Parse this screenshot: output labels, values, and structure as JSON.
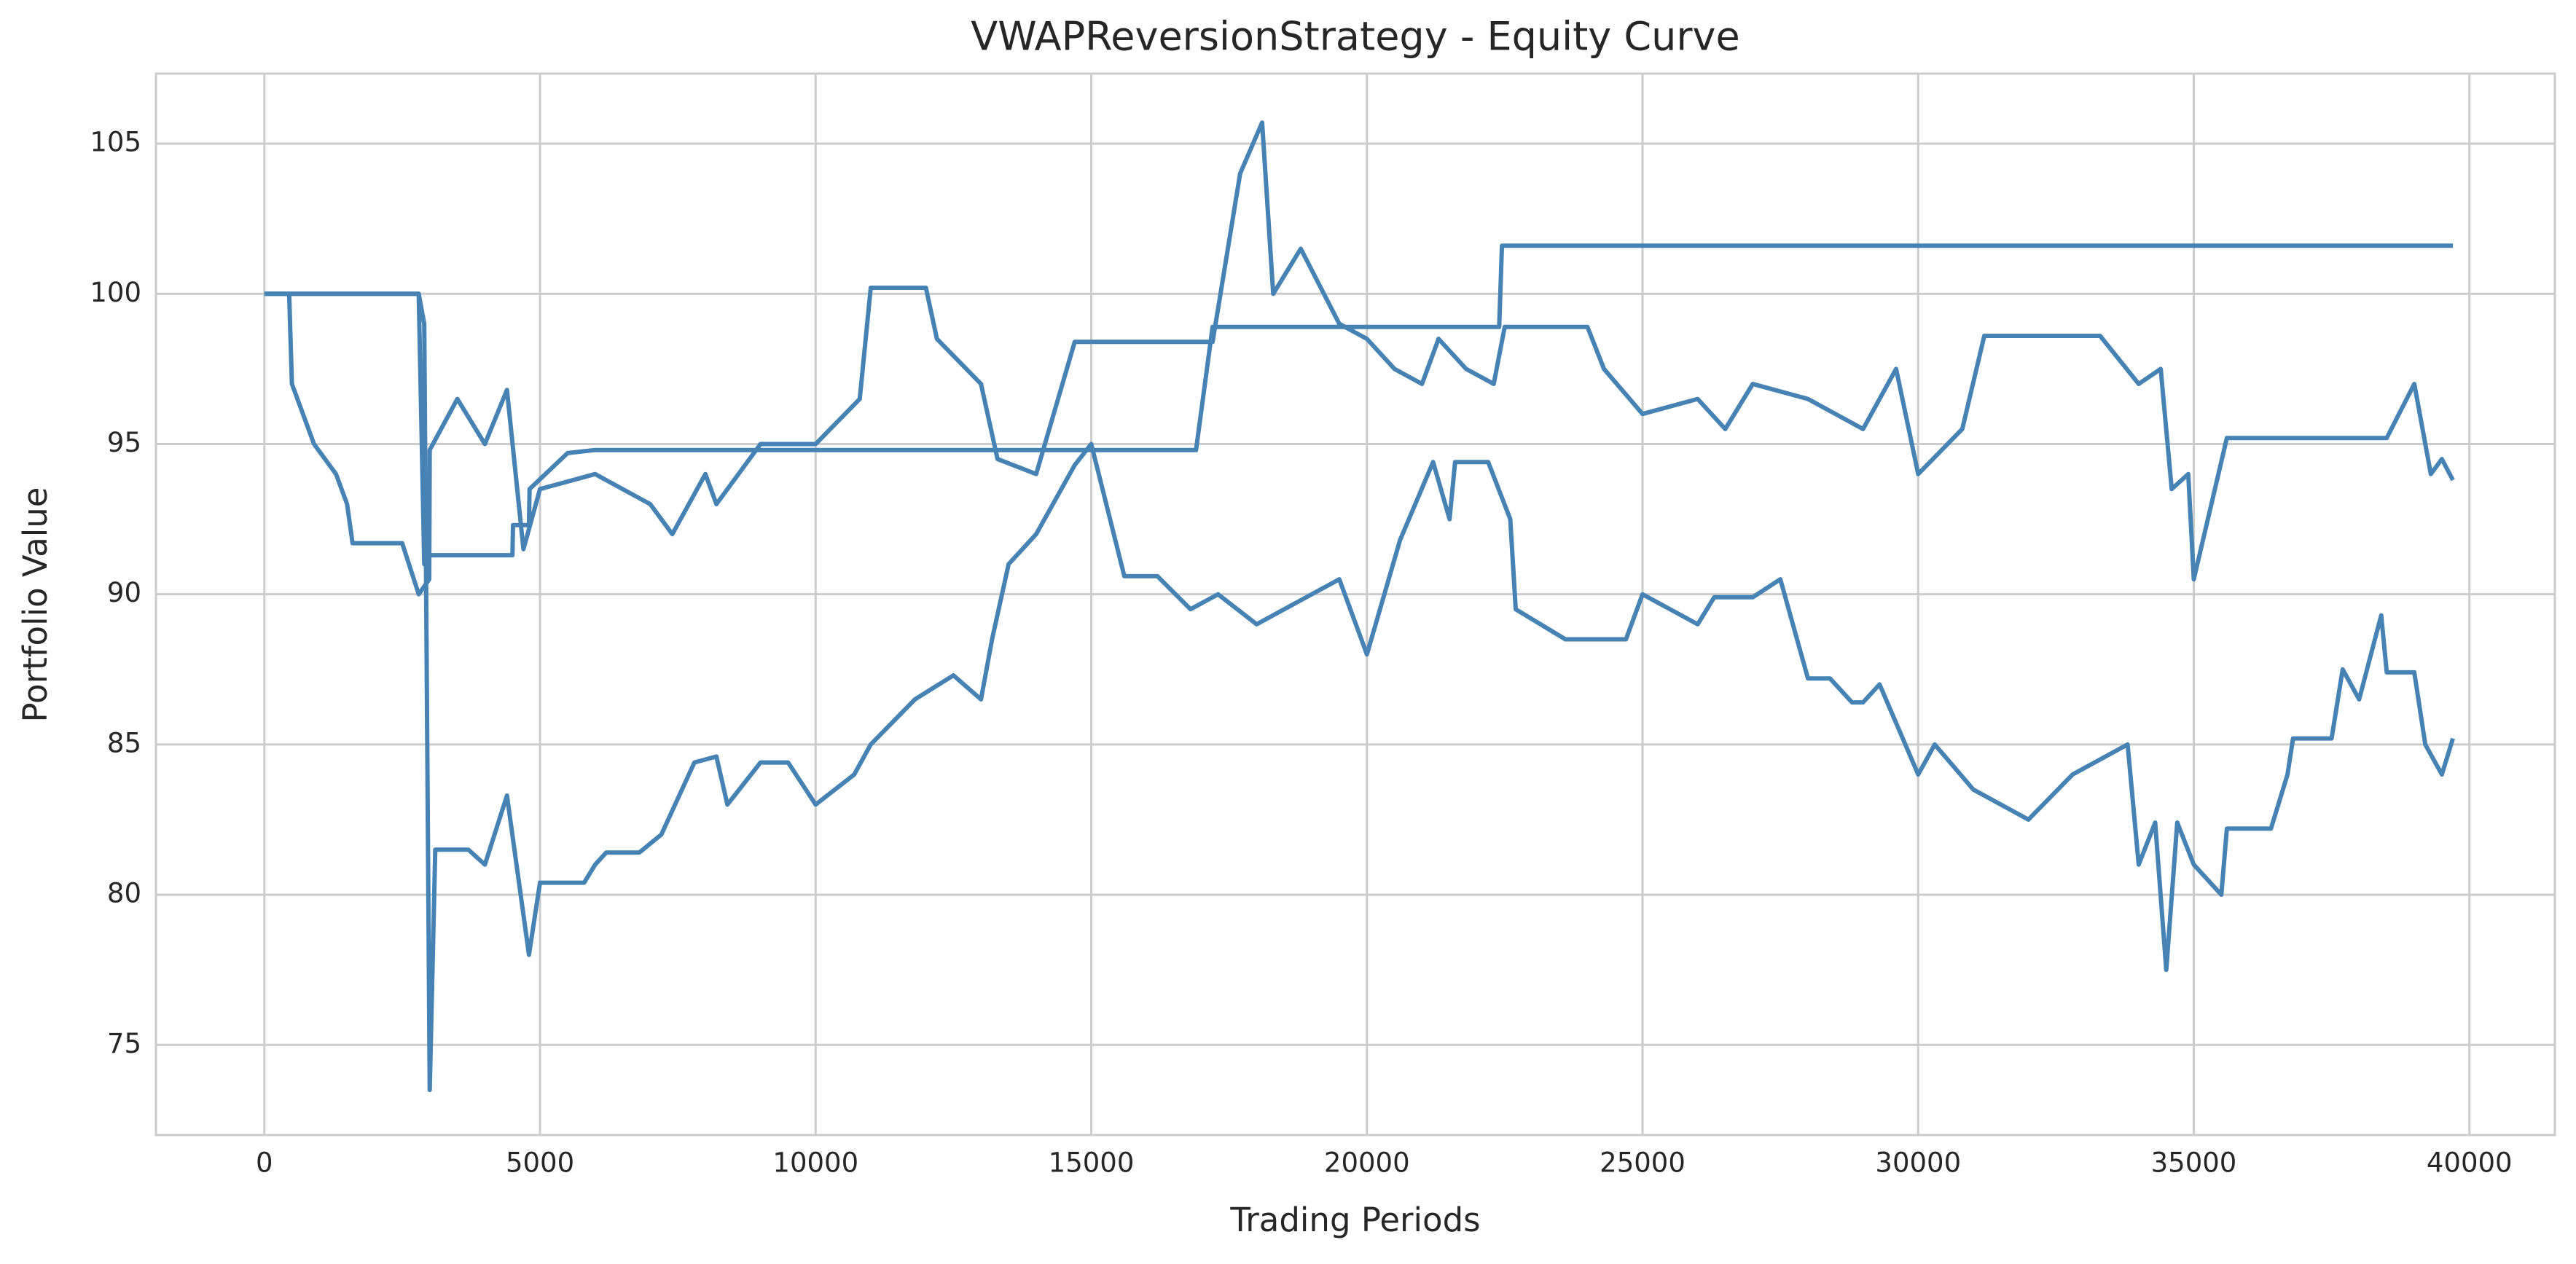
{
  "chart_data": {
    "type": "line",
    "title": "VWAPReversionStrategy - Equity Curve",
    "x_label": "Trading Periods",
    "y_label": "Portfolio Value",
    "xlim": [
      -1967,
      41550
    ],
    "ylim": [
      72,
      107.33
    ],
    "xticks": [
      0,
      5000,
      10000,
      15000,
      20000,
      25000,
      30000,
      35000,
      40000
    ],
    "yticks": [
      75,
      80,
      85,
      90,
      95,
      100,
      105
    ],
    "grid": true,
    "series": [
      {
        "color": "#4682b4",
        "x": [
          0,
          2800,
          2900,
          3000,
          4500,
          4510,
          4800,
          4810,
          5500,
          6000,
          16900,
          17200,
          22400,
          22450,
          39700
        ],
        "values": [
          100,
          100,
          91,
          91.3,
          91.3,
          92.3,
          92.3,
          93.5,
          94.7,
          94.8,
          94.8,
          98.9,
          98.9,
          101.6,
          101.6
        ]
      },
      {
        "color": "#4682b4",
        "x": [
          0,
          450,
          500,
          900,
          1300,
          1500,
          1600,
          2500,
          2800,
          2990,
          3000,
          3500,
          4000,
          4400,
          4700,
          5000,
          6000,
          7000,
          7400,
          8000,
          8200,
          9000,
          10000,
          10800,
          11000,
          12000,
          12200,
          13000,
          13300,
          14000,
          14700,
          17200,
          17300,
          17700,
          18100,
          18300,
          18800,
          19500,
          20000,
          20500,
          21000,
          21300,
          21800,
          22300,
          22500,
          24000,
          24300,
          25000,
          26000,
          26500,
          27000,
          28000,
          29000,
          29600,
          30000,
          30800,
          31200,
          33300,
          34000,
          34400,
          34600,
          34900,
          35000,
          35600,
          38500,
          39000,
          39300,
          39500,
          39700
        ],
        "values": [
          100,
          100,
          97,
          95,
          94,
          93,
          91.7,
          91.7,
          90,
          90.5,
          94.8,
          96.5,
          95,
          96.8,
          91.5,
          93.5,
          94,
          93,
          92,
          94,
          93,
          95,
          95,
          96.5,
          100.2,
          100.2,
          98.5,
          97,
          94.5,
          94,
          98.4,
          98.4,
          99.5,
          104,
          105.7,
          100,
          101.5,
          99,
          98.5,
          97.5,
          97,
          98.5,
          97.5,
          97,
          98.9,
          98.9,
          97.5,
          96,
          96.5,
          95.5,
          97,
          96.5,
          95.5,
          97.5,
          94,
          95.5,
          98.6,
          98.6,
          97,
          97.5,
          93.5,
          94,
          90.5,
          95.2,
          95.2,
          97,
          94,
          94.5,
          93.8
        ]
      },
      {
        "color": "#4682b4",
        "x": [
          0,
          2800,
          2900,
          3000,
          3100,
          3700,
          4000,
          4400,
          4800,
          5000,
          5800,
          6000,
          6200,
          6800,
          7200,
          7800,
          8200,
          8400,
          9000,
          9500,
          10000,
          10700,
          11000,
          11800,
          12500,
          13000,
          13200,
          13500,
          14000,
          14700,
          15000,
          15600,
          16200,
          16800,
          17300,
          18000,
          19500,
          20000,
          20600,
          21200,
          21500,
          21600,
          22200,
          22600,
          22700,
          23600,
          24700,
          25000,
          26000,
          26300,
          27000,
          27500,
          28000,
          28400,
          28800,
          29000,
          29300,
          30000,
          30300,
          31000,
          32000,
          32800,
          33500,
          33800,
          34000,
          34300,
          34500,
          34700,
          35000,
          35500,
          35600,
          36400,
          36700,
          36800,
          37500,
          37700,
          38000,
          38400,
          38500,
          39000,
          39200,
          39500,
          39700
        ],
        "values": [
          100,
          100,
          99,
          73.5,
          81.5,
          81.5,
          81,
          83.3,
          78,
          80.4,
          80.4,
          81,
          81.4,
          81.4,
          82,
          84.4,
          84.6,
          83,
          84.4,
          84.4,
          83,
          84,
          85,
          86.5,
          87.3,
          86.5,
          88.5,
          91,
          92,
          94.3,
          95,
          90.6,
          90.6,
          89.5,
          90,
          89,
          90.5,
          88,
          91.8,
          94.4,
          92.5,
          94.4,
          94.4,
          92.5,
          89.5,
          88.5,
          88.5,
          90,
          89,
          89.9,
          89.9,
          90.5,
          87.2,
          87.2,
          86.4,
          86.4,
          87,
          84,
          85,
          83.5,
          82.5,
          84,
          84.7,
          85,
          81,
          82.4,
          77.5,
          82.4,
          81,
          80,
          82.2,
          82.2,
          84,
          85.2,
          85.2,
          87.5,
          86.5,
          89.3,
          87.4,
          87.4,
          85,
          84,
          85.2
        ]
      }
    ]
  }
}
